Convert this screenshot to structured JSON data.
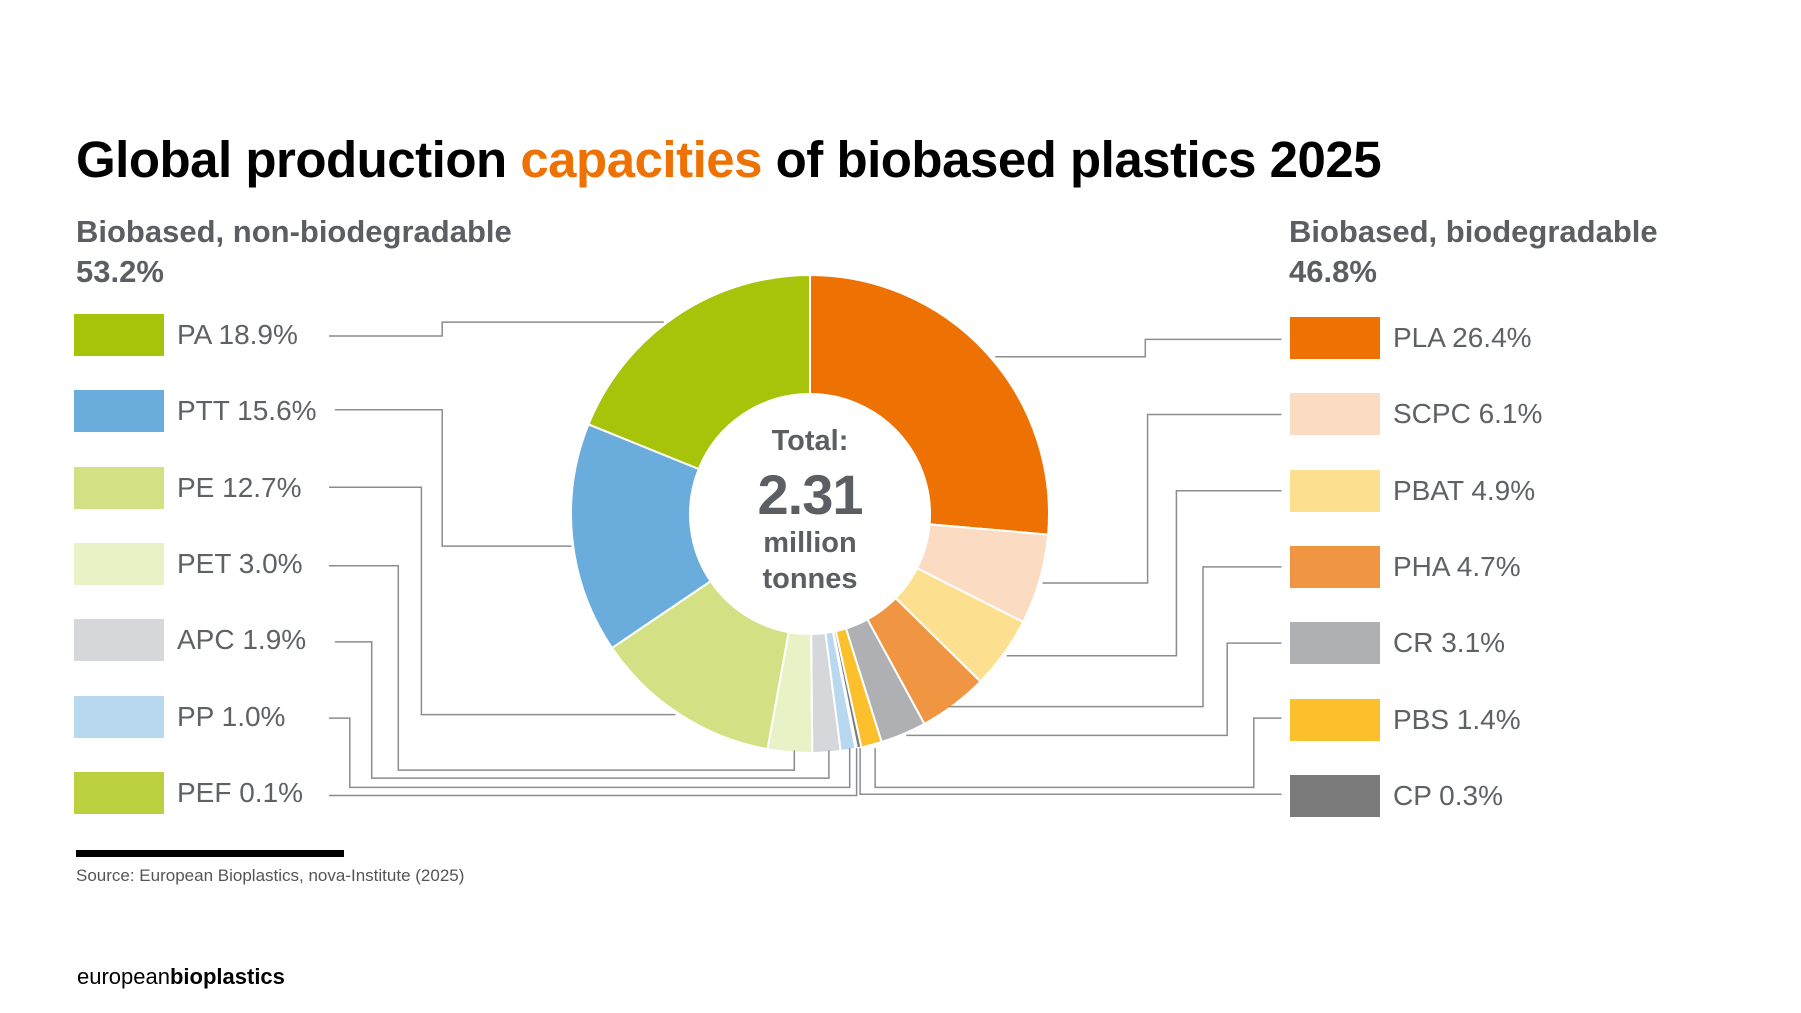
{
  "title": {
    "part1": "Global production ",
    "accent": "capacities",
    "part2": " of biobased plastics 2025"
  },
  "groups": {
    "left": {
      "label": "Biobased, non-biodegradable",
      "share": "53.2%"
    },
    "right": {
      "label": "Biobased, biodegradable",
      "share": "46.8%"
    }
  },
  "center": {
    "line1": "Total:",
    "value": "2.31",
    "line3": "million",
    "line4": "tonnes"
  },
  "source": "Source: European Bioplastics, nova-Institute (2025)",
  "logo": {
    "part1": "european",
    "part2": "bioplastics"
  },
  "chart_data": {
    "type": "pie",
    "donut": true,
    "title": "Global production capacities of biobased plastics 2025",
    "total": "2.31 million tonnes",
    "unit": "%",
    "slices": [
      {
        "name": "PLA",
        "value": 26.4,
        "group": "Biobased, biodegradable",
        "color": "#ee7203"
      },
      {
        "name": "SCPC",
        "value": 6.1,
        "group": "Biobased, biodegradable",
        "color": "#fbdcc3"
      },
      {
        "name": "PBAT",
        "value": 4.9,
        "group": "Biobased, biodegradable",
        "color": "#fde08f"
      },
      {
        "name": "PHA",
        "value": 4.7,
        "group": "Biobased, biodegradable",
        "color": "#f09542"
      },
      {
        "name": "CR",
        "value": 3.1,
        "group": "Biobased, biodegradable",
        "color": "#aeb0b3"
      },
      {
        "name": "PBS",
        "value": 1.4,
        "group": "Biobased, biodegradable",
        "color": "#fcc02c"
      },
      {
        "name": "CP",
        "value": 0.3,
        "group": "Biobased, biodegradable",
        "color": "#7a7a7a"
      },
      {
        "name": "PEF",
        "value": 0.1,
        "group": "Biobased, non-biodegradable",
        "color": "#bdd03f"
      },
      {
        "name": "PP",
        "value": 1.0,
        "group": "Biobased, non-biodegradable",
        "color": "#b8d8f0"
      },
      {
        "name": "APC",
        "value": 1.9,
        "group": "Biobased, non-biodegradable",
        "color": "#d6d7db"
      },
      {
        "name": "PET",
        "value": 3.0,
        "group": "Biobased, non-biodegradable",
        "color": "#e8f2c6"
      },
      {
        "name": "PE",
        "value": 12.7,
        "group": "Biobased, non-biodegradable",
        "color": "#d3e184"
      },
      {
        "name": "PTT",
        "value": 15.6,
        "group": "Biobased, non-biodegradable",
        "color": "#6aacdc"
      },
      {
        "name": "PA",
        "value": 18.9,
        "group": "Biobased, non-biodegradable",
        "color": "#a8c40a"
      }
    ],
    "legend": {
      "left": [
        "PA",
        "PTT",
        "PE",
        "PET",
        "APC",
        "PP",
        "PEF"
      ],
      "right": [
        "PLA",
        "SCPC",
        "PBAT",
        "PHA",
        "CR",
        "PBS",
        "CP"
      ]
    }
  }
}
